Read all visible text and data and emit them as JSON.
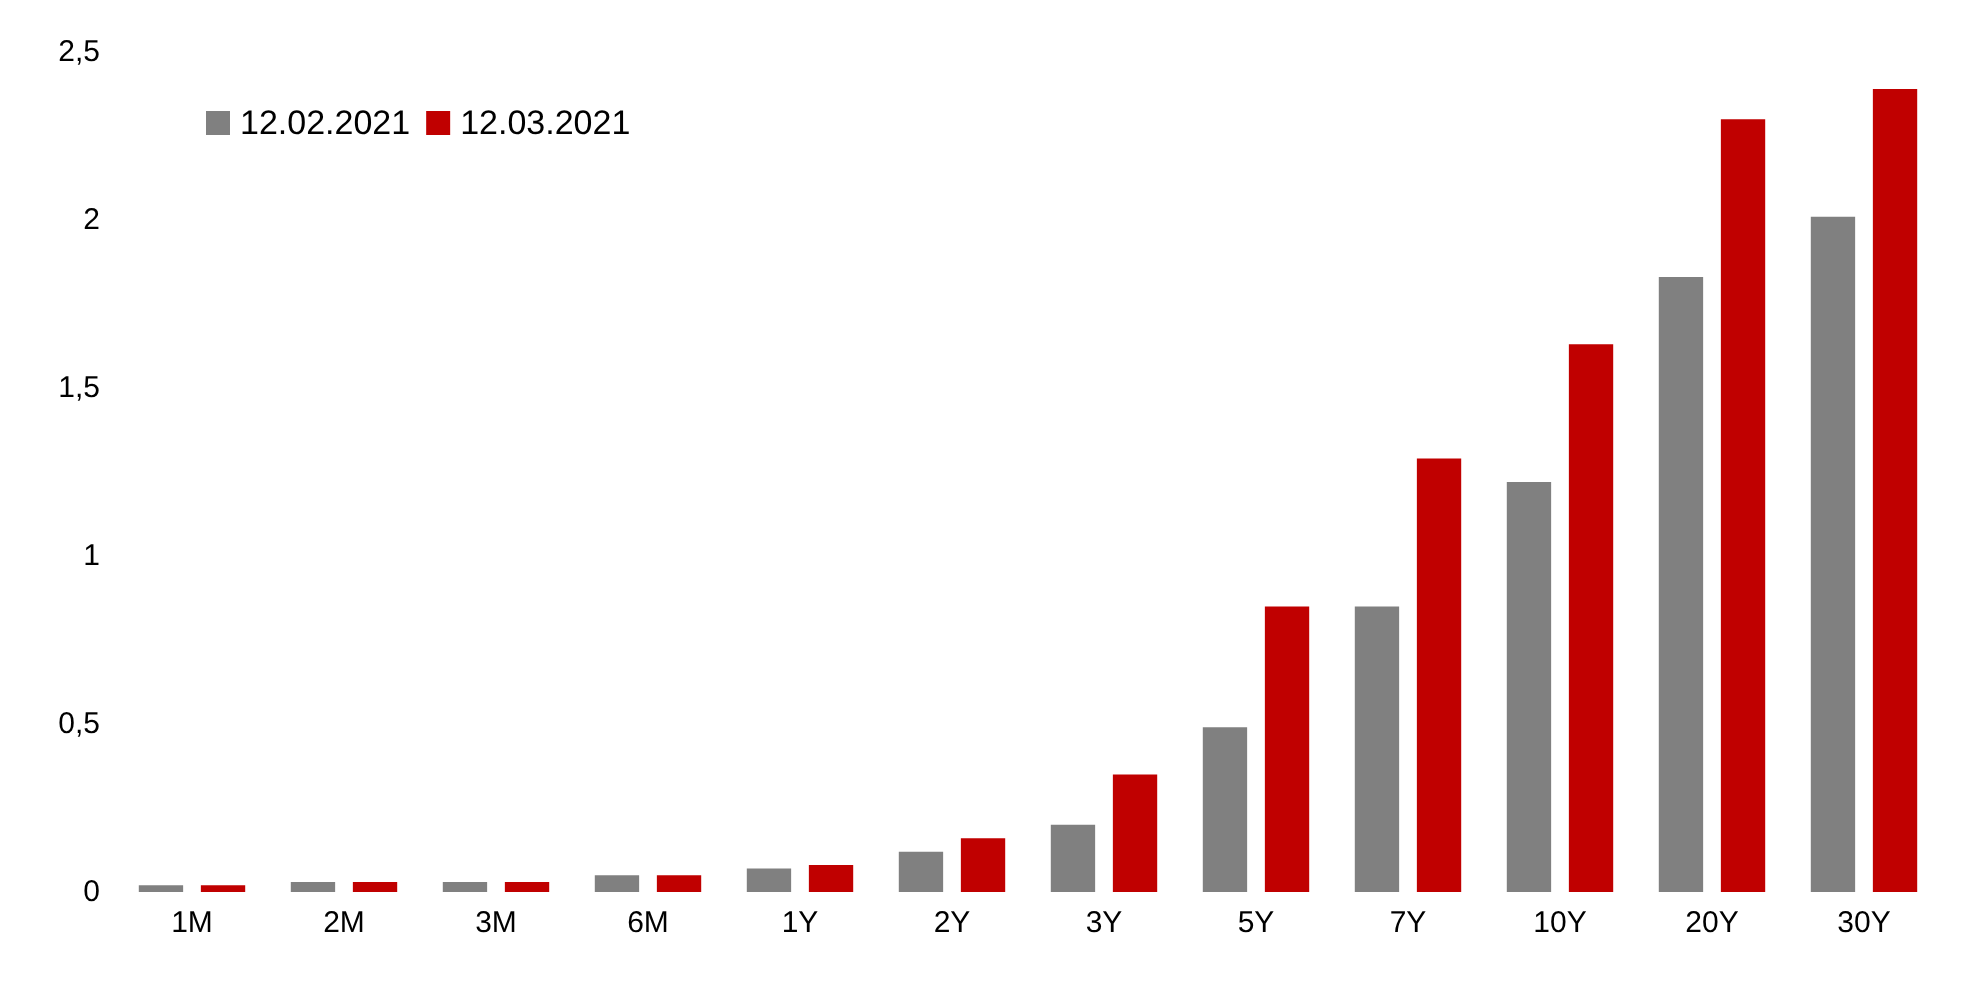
{
  "chart_data": {
    "type": "bar",
    "categories": [
      "1M",
      "2M",
      "3M",
      "6M",
      "1Y",
      "2Y",
      "3Y",
      "5Y",
      "7Y",
      "10Y",
      "20Y",
      "30Y"
    ],
    "series": [
      {
        "name": "12.02.2021",
        "color": "#808080",
        "values": [
          0.02,
          0.03,
          0.03,
          0.05,
          0.07,
          0.12,
          0.2,
          0.49,
          0.85,
          1.22,
          1.83,
          2.01
        ]
      },
      {
        "name": "12.03.2021",
        "color": "#c00000",
        "values": [
          0.02,
          0.03,
          0.03,
          0.05,
          0.08,
          0.16,
          0.35,
          0.85,
          1.29,
          1.63,
          2.3,
          2.39
        ]
      }
    ],
    "ylim": [
      0,
      2.5
    ],
    "yticks": [
      0,
      {
        "value": 0.5,
        "label": "0,5"
      },
      1,
      {
        "value": 1.5,
        "label": "1,5"
      },
      2,
      {
        "value": 2.5,
        "label": "2,5"
      }
    ],
    "grid": false,
    "legend": "top left"
  }
}
